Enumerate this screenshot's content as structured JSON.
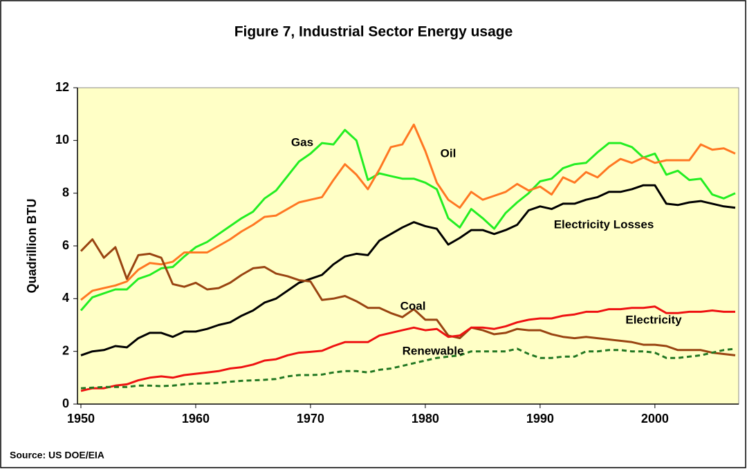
{
  "chart_data": {
    "type": "line",
    "title": "Figure 7, Industrial Sector Energy usage",
    "ylabel": "Quadrillion BTU",
    "source": "Source: US DOE/EIA",
    "x": [
      1950,
      1951,
      1952,
      1953,
      1954,
      1955,
      1956,
      1957,
      1958,
      1959,
      1960,
      1961,
      1962,
      1963,
      1964,
      1965,
      1966,
      1967,
      1968,
      1969,
      1970,
      1971,
      1972,
      1973,
      1974,
      1975,
      1976,
      1977,
      1978,
      1979,
      1980,
      1981,
      1982,
      1983,
      1984,
      1985,
      1986,
      1987,
      1988,
      1989,
      1990,
      1991,
      1992,
      1993,
      1994,
      1995,
      1996,
      1997,
      1998,
      1999,
      2000,
      2001,
      2002,
      2003,
      2004,
      2005,
      2006,
      2007
    ],
    "xlim": [
      1949.7,
      2007.3
    ],
    "xticks": [
      1950,
      1960,
      1970,
      1980,
      1990,
      2000
    ],
    "ylim": [
      0,
      12
    ],
    "yticks": [
      0,
      2,
      4,
      6,
      8,
      10,
      12
    ],
    "grid": false,
    "series": [
      {
        "name": "Gas",
        "color": "#22ee22",
        "values": [
          3.55,
          4.05,
          4.2,
          4.35,
          4.35,
          4.75,
          4.9,
          5.15,
          5.2,
          5.6,
          5.95,
          6.15,
          6.45,
          6.75,
          7.05,
          7.3,
          7.8,
          8.1,
          8.65,
          9.2,
          9.5,
          9.9,
          9.85,
          10.4,
          10.0,
          8.5,
          8.75,
          8.65,
          8.55,
          8.55,
          8.4,
          8.15,
          7.05,
          6.7,
          7.4,
          7.05,
          6.65,
          7.25,
          7.65,
          8.0,
          8.45,
          8.55,
          8.95,
          9.1,
          9.15,
          9.55,
          9.9,
          9.9,
          9.75,
          9.35,
          9.5,
          8.7,
          8.85,
          8.5,
          8.55,
          7.95,
          7.8,
          8.0
        ]
      },
      {
        "name": "Oil",
        "color": "#ff7722",
        "values": [
          3.95,
          4.3,
          4.4,
          4.5,
          4.65,
          5.1,
          5.35,
          5.3,
          5.4,
          5.75,
          5.75,
          5.75,
          6.0,
          6.25,
          6.55,
          6.8,
          7.1,
          7.15,
          7.4,
          7.65,
          7.75,
          7.85,
          8.5,
          9.1,
          8.7,
          8.15,
          8.9,
          9.75,
          9.85,
          10.6,
          9.6,
          8.4,
          7.75,
          7.45,
          8.05,
          7.75,
          7.9,
          8.05,
          8.35,
          8.1,
          8.25,
          7.95,
          8.6,
          8.4,
          8.8,
          8.6,
          9.0,
          9.3,
          9.15,
          9.35,
          9.15,
          9.25,
          9.25,
          9.25,
          9.85,
          9.65,
          9.7,
          9.5
        ]
      },
      {
        "name": "Electricity Losses",
        "color": "#000000",
        "values": [
          1.85,
          2.0,
          2.05,
          2.2,
          2.15,
          2.5,
          2.7,
          2.7,
          2.55,
          2.75,
          2.75,
          2.85,
          3.0,
          3.1,
          3.35,
          3.55,
          3.85,
          4.0,
          4.3,
          4.6,
          4.75,
          4.9,
          5.3,
          5.6,
          5.7,
          5.65,
          6.2,
          6.45,
          6.7,
          6.9,
          6.75,
          6.65,
          6.05,
          6.3,
          6.6,
          6.6,
          6.45,
          6.6,
          6.8,
          7.35,
          7.5,
          7.4,
          7.6,
          7.6,
          7.75,
          7.85,
          8.05,
          8.05,
          8.15,
          8.3,
          8.3,
          7.6,
          7.55,
          7.65,
          7.7,
          7.6,
          7.5,
          7.45
        ]
      },
      {
        "name": "Coal",
        "color": "#994411",
        "values": [
          5.8,
          6.25,
          5.55,
          5.95,
          4.75,
          5.65,
          5.7,
          5.55,
          4.55,
          4.45,
          4.6,
          4.35,
          4.4,
          4.6,
          4.9,
          5.15,
          5.2,
          4.95,
          4.85,
          4.7,
          4.65,
          3.95,
          4.0,
          4.1,
          3.9,
          3.65,
          3.65,
          3.45,
          3.3,
          3.6,
          3.2,
          3.2,
          2.6,
          2.5,
          2.9,
          2.8,
          2.65,
          2.7,
          2.85,
          2.8,
          2.8,
          2.65,
          2.55,
          2.5,
          2.55,
          2.5,
          2.45,
          2.4,
          2.35,
          2.25,
          2.25,
          2.2,
          2.05,
          2.05,
          2.05,
          1.95,
          1.9,
          1.85
        ]
      },
      {
        "name": "Electricity",
        "color": "#ee1111",
        "values": [
          0.5,
          0.6,
          0.6,
          0.7,
          0.75,
          0.9,
          1.0,
          1.05,
          1.0,
          1.1,
          1.15,
          1.2,
          1.25,
          1.35,
          1.4,
          1.5,
          1.65,
          1.7,
          1.85,
          1.95,
          1.98,
          2.02,
          2.2,
          2.35,
          2.35,
          2.35,
          2.6,
          2.7,
          2.8,
          2.9,
          2.8,
          2.85,
          2.55,
          2.6,
          2.9,
          2.9,
          2.85,
          2.95,
          3.1,
          3.2,
          3.25,
          3.25,
          3.35,
          3.4,
          3.5,
          3.5,
          3.6,
          3.6,
          3.65,
          3.65,
          3.7,
          3.45,
          3.45,
          3.5,
          3.5,
          3.55,
          3.5,
          3.5
        ]
      },
      {
        "name": "Renewable",
        "color": "#227722",
        "dashed": true,
        "values": [
          0.6,
          0.62,
          0.65,
          0.65,
          0.65,
          0.7,
          0.7,
          0.68,
          0.7,
          0.75,
          0.78,
          0.78,
          0.8,
          0.85,
          0.88,
          0.9,
          0.92,
          0.95,
          1.05,
          1.1,
          1.1,
          1.12,
          1.2,
          1.25,
          1.25,
          1.2,
          1.3,
          1.35,
          1.45,
          1.55,
          1.65,
          1.75,
          1.8,
          1.85,
          2.0,
          2.0,
          2.0,
          2.0,
          2.1,
          1.9,
          1.75,
          1.75,
          1.8,
          1.8,
          2.0,
          2.0,
          2.05,
          2.05,
          2.0,
          2.0,
          1.95,
          1.75,
          1.75,
          1.8,
          1.85,
          1.95,
          2.05,
          2.1
        ]
      }
    ]
  }
}
